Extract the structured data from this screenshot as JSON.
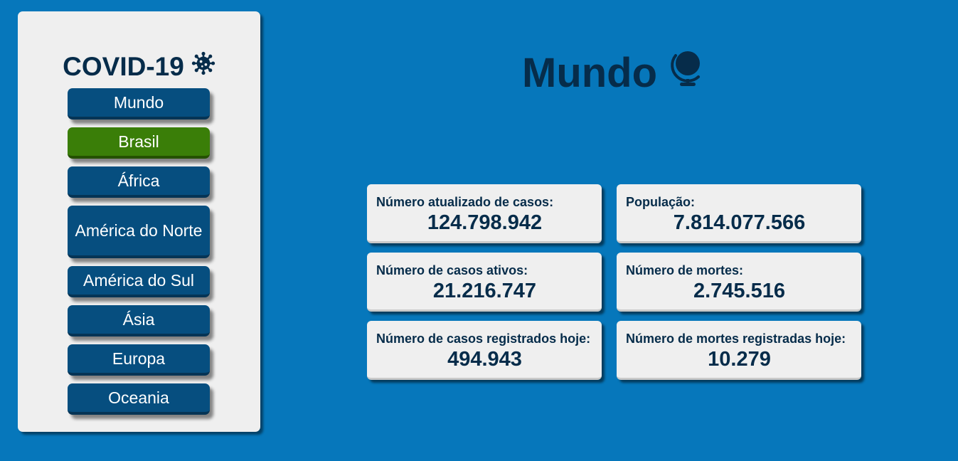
{
  "sidebar": {
    "brand": "COVID-19",
    "brand_icon": "virus-icon",
    "nav_items": [
      {
        "label": "Mundo"
      },
      {
        "label": "Brasil",
        "active": true
      },
      {
        "label": "África"
      },
      {
        "label": "América do Norte"
      },
      {
        "label": "América do Sul"
      },
      {
        "label": "Ásia"
      },
      {
        "label": "Europa"
      },
      {
        "label": "Oceania"
      }
    ]
  },
  "main": {
    "title": "Mundo",
    "title_icon": "globe-icon",
    "stats": [
      {
        "label": "Número atualizado de casos:",
        "value": "124.798.942"
      },
      {
        "label": "População:",
        "value": "7.814.077.566"
      },
      {
        "label": "Número de casos ativos:",
        "value": "21.216.747"
      },
      {
        "label": "Número de mortes:",
        "value": "2.745.516"
      },
      {
        "label": "Número de casos registrados hoje:",
        "value": "494.943"
      },
      {
        "label": "Número de mortes registradas hoje:",
        "value": "10.279"
      }
    ]
  },
  "colors": {
    "background": "#0677bb",
    "panel": "#efefef",
    "nav_button": "#064e7f",
    "nav_active": "#3a7e08",
    "text_dark": "#062c4a"
  }
}
